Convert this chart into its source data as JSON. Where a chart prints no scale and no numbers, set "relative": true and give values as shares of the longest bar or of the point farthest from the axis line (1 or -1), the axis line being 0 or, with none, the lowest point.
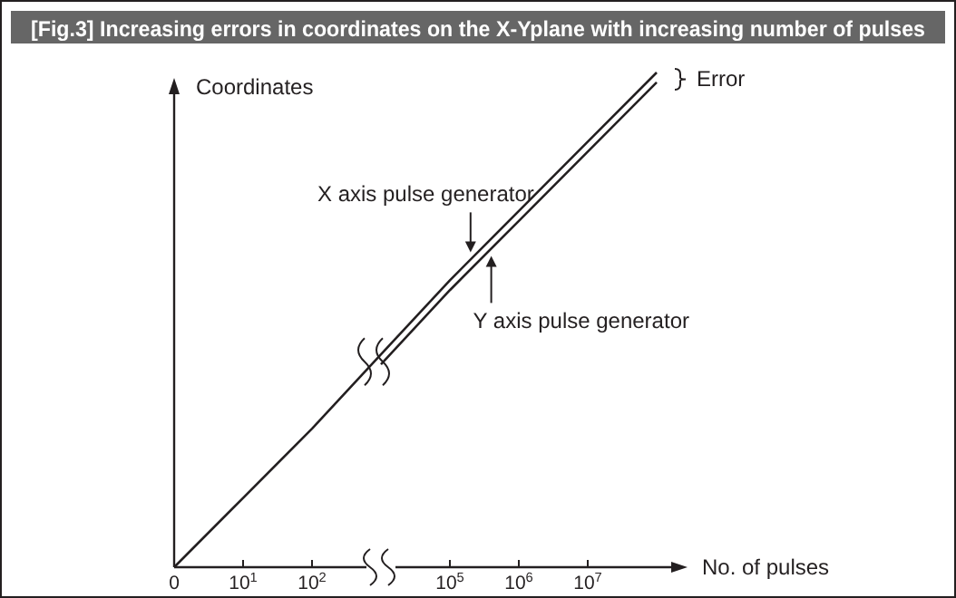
{
  "chart_data": {
    "type": "line",
    "title": "[Fig.3] Increasing errors in coordinates on the X-Yplane with increasing number of pulses",
    "xlabel": "No. of pulses",
    "ylabel": "Coordinates",
    "relative": true,
    "categories": [
      "0",
      "10$^{1}$",
      "10$^{2}$",
      null,
      "10$^{5}$",
      "10$^{6}$",
      "10$^{7}$",
      null
    ],
    "series": [
      {
        "name": "X axis pulse generator",
        "color": "#231f20",
        "values": [
          0,
          0.14,
          0.28,
          0.43,
          0.58,
          0.72,
          0.86,
          1.0
        ]
      },
      {
        "name": "Y axis pulse generator",
        "color": "#231f20",
        "values": [
          null,
          null,
          null,
          0.41,
          0.56,
          0.7,
          0.84,
          0.98
        ]
      }
    ],
    "annotations": [
      "Error"
    ],
    "marker": "none",
    "line_style": "solid"
  }
}
